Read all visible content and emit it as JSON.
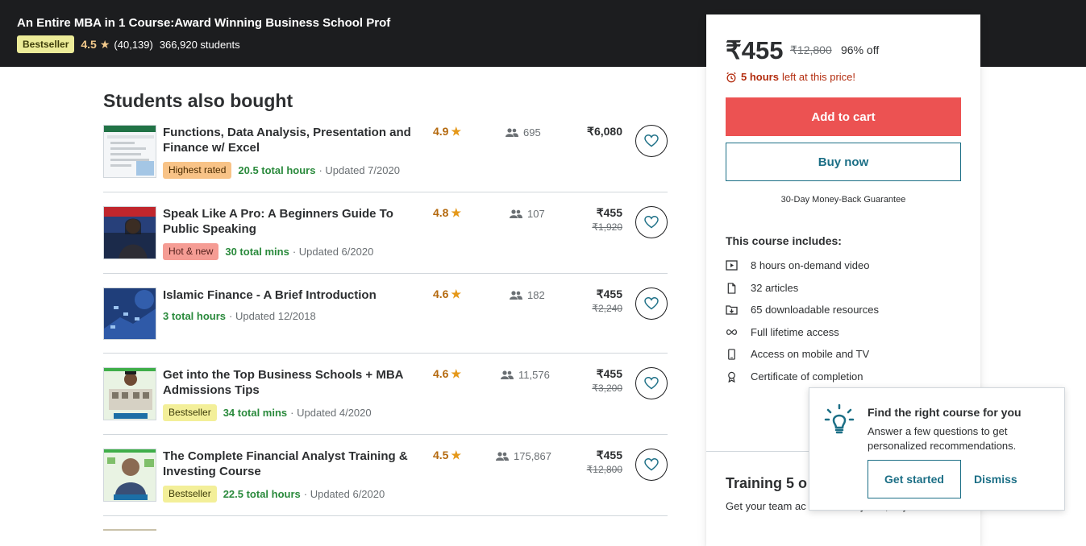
{
  "header": {
    "title": "An Entire MBA in 1 Course:Award Winning Business School Prof",
    "badge": "Bestseller",
    "rating": "4.5",
    "rating_count": "(40,139)",
    "students": "366,920 students"
  },
  "section": {
    "title": "Students also bought"
  },
  "courses": [
    {
      "title": "Functions, Data Analysis, Presentation and Finance w/ Excel",
      "tag": "Highest rated",
      "hours": "20.5 total hours",
      "updated": "· Updated 7/2020",
      "rating": "4.9",
      "enrolled": "695",
      "price": "₹6,080",
      "old_price": ""
    },
    {
      "title": "Speak Like A Pro: A Beginners Guide To Public Speaking",
      "tag": "Hot & new",
      "hours": "30 total mins",
      "updated": "· Updated 6/2020",
      "rating": "4.8",
      "enrolled": "107",
      "price": "₹455",
      "old_price": "₹1,920"
    },
    {
      "title": "Islamic Finance - A Brief Introduction",
      "tag": "",
      "hours": "3 total hours",
      "updated": "· Updated 12/2018",
      "rating": "4.6",
      "enrolled": "182",
      "price": "₹455",
      "old_price": "₹2,240"
    },
    {
      "title": "Get into the Top Business Schools + MBA Admissions Tips",
      "tag": "Bestseller",
      "hours": "34 total mins",
      "updated": "· Updated 4/2020",
      "rating": "4.6",
      "enrolled": "11,576",
      "price": "₹455",
      "old_price": "₹3,200"
    },
    {
      "title": "The Complete Financial Analyst Training & Investing Course",
      "tag": "Bestseller",
      "hours": "22.5 total hours",
      "updated": "· Updated 6/2020",
      "rating": "4.5",
      "enrolled": "175,867",
      "price": "₹455",
      "old_price": "₹12,800"
    }
  ],
  "sidebar": {
    "price": "₹455",
    "original_price": "₹12,800",
    "discount": "96% off",
    "timer_hours": "5 hours",
    "timer_text": "left at this price!",
    "add_to_cart": "Add to cart",
    "buy_now": "Buy now",
    "guarantee": "30-Day Money-Back Guarantee",
    "includes_title": "This course includes:",
    "includes": [
      {
        "icon": "video-icon",
        "label": "8 hours on-demand video"
      },
      {
        "icon": "file-icon",
        "label": "32 articles"
      },
      {
        "icon": "download-icon",
        "label": "65 downloadable resources"
      },
      {
        "icon": "infinity-icon",
        "label": "Full lifetime access"
      },
      {
        "icon": "mobile-icon",
        "label": "Access on mobile and TV"
      },
      {
        "icon": "certificate-icon",
        "label": "Certificate of completion"
      }
    ],
    "training_title": "Training 5 o",
    "training_text": "Get your team ac courses anytime, anywhere."
  },
  "popup": {
    "title": "Find the right course for you",
    "text": "Answer a few questions to get personalized recommendations.",
    "get_started": "Get started",
    "dismiss": "Dismiss"
  },
  "colors": {
    "accent": "#ec5252",
    "link": "#1c6f86",
    "rating": "#b4690e",
    "hours": "#2a8a3c"
  }
}
